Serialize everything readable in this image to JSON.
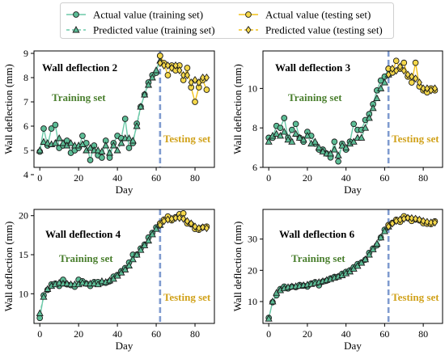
{
  "colors": {
    "training": "#6cc9a8",
    "training_marker": "#5cbd96",
    "testing": "#f2c21a",
    "testing_marker": "#f5d84a",
    "divider": "#7f9bcf",
    "train_text": "#4a7f2e",
    "test_text": "#d1a21b"
  },
  "legend": {
    "entries": [
      {
        "label": "Actual value (training set)",
        "marker": "circle",
        "dashed": false,
        "color": "training"
      },
      {
        "label": "Actual value (testing set)",
        "marker": "circle",
        "dashed": false,
        "color": "testing"
      },
      {
        "label": "Predicted value (training set)",
        "marker": "triangle",
        "dashed": true,
        "color": "training"
      },
      {
        "label": "Predicted value (testing set)",
        "marker": "diamond",
        "dashed": true,
        "color": "testing"
      }
    ]
  },
  "chart_data": [
    {
      "type": "line",
      "title": "Wall deflection 2",
      "xlabel": "Day",
      "ylabel": "Wall deflection (mm)",
      "xlim": [
        -3,
        90
      ],
      "ylim": [
        4.3,
        9.1
      ],
      "xticks": [
        0,
        20,
        40,
        60,
        80
      ],
      "yticks": [
        4,
        5,
        6,
        7,
        8,
        9
      ],
      "split_day": 62,
      "train_label": "Training set",
      "test_label": "Testing set",
      "series": [
        {
          "name": "Actual value (training set)",
          "x": [
            0,
            2,
            4,
            6,
            8,
            10,
            12,
            14,
            16,
            18,
            20,
            22,
            24,
            26,
            28,
            30,
            32,
            34,
            36,
            38,
            40,
            42,
            44,
            46,
            48,
            50,
            52,
            54,
            56,
            58,
            60,
            62
          ],
          "y": [
            4.95,
            5.9,
            5.2,
            5.9,
            6.05,
            5.1,
            5.2,
            5.4,
            4.9,
            5.0,
            5.1,
            5.6,
            5.3,
            4.6,
            5.2,
            4.8,
            4.7,
            5.4,
            4.7,
            5.3,
            5.6,
            5.5,
            6.3,
            5.1,
            5.3,
            6.1,
            6.8,
            7.3,
            7.8,
            8.1,
            8.2,
            8.9
          ]
        },
        {
          "name": "Predicted value (training set)",
          "x": [
            0,
            2,
            4,
            6,
            8,
            10,
            12,
            14,
            16,
            18,
            20,
            22,
            24,
            26,
            28,
            30,
            32,
            34,
            36,
            38,
            40,
            42,
            44,
            46,
            48,
            50,
            52,
            54,
            56,
            58,
            60,
            62
          ],
          "y": [
            5.0,
            5.35,
            5.3,
            5.25,
            5.3,
            5.5,
            5.3,
            5.2,
            5.3,
            5.2,
            5.2,
            5.25,
            5.0,
            5.1,
            5.0,
            5.0,
            4.95,
            5.2,
            4.9,
            5.2,
            5.0,
            5.3,
            5.5,
            5.5,
            5.4,
            6.0,
            6.8,
            7.3,
            7.7,
            8.0,
            8.3,
            8.7
          ]
        },
        {
          "name": "Actual value (testing set)",
          "x": [
            62,
            64,
            66,
            68,
            70,
            72,
            74,
            76,
            78,
            80,
            82,
            84,
            86
          ],
          "y": [
            8.9,
            8.6,
            8.1,
            8.5,
            8.3,
            8.5,
            7.9,
            8.4,
            7.6,
            7.0,
            7.6,
            7.9,
            7.5
          ]
        },
        {
          "name": "Predicted value (testing set)",
          "x": [
            62,
            64,
            66,
            68,
            70,
            72,
            74,
            76,
            78,
            80,
            82,
            84,
            86
          ],
          "y": [
            8.6,
            8.5,
            8.5,
            8.4,
            8.5,
            8.3,
            8.1,
            8.1,
            7.8,
            7.9,
            7.8,
            8.0,
            8.0
          ]
        }
      ]
    },
    {
      "type": "line",
      "title": "Wall deflection 3",
      "xlabel": "Day",
      "ylabel": "Wall deflection (mm)",
      "xlim": [
        -3,
        90
      ],
      "ylim": [
        6.0,
        11.9
      ],
      "xticks": [
        0,
        20,
        40,
        60,
        80
      ],
      "yticks": [
        6,
        8,
        10
      ],
      "split_day": 62,
      "train_label": "Training set",
      "test_label": "Testing set",
      "series": [
        {
          "name": "Actual value (training set)",
          "x": [
            0,
            2,
            4,
            6,
            8,
            10,
            12,
            14,
            16,
            18,
            20,
            22,
            24,
            26,
            28,
            30,
            32,
            34,
            36,
            38,
            40,
            42,
            44,
            46,
            48,
            50,
            52,
            54,
            56,
            58,
            60,
            62
          ],
          "y": [
            7.5,
            7.5,
            8.1,
            8.0,
            8.5,
            7.5,
            7.9,
            8.2,
            7.5,
            7.3,
            7.8,
            7.6,
            7.2,
            6.9,
            6.9,
            6.7,
            6.5,
            7.3,
            6.3,
            7.2,
            6.9,
            7.3,
            8.2,
            7.9,
            7.9,
            8.4,
            8.7,
            9.2,
            9.9,
            10.4,
            10.6,
            11.0
          ]
        },
        {
          "name": "Predicted value (training set)",
          "x": [
            0,
            2,
            4,
            6,
            8,
            10,
            12,
            14,
            16,
            18,
            20,
            22,
            24,
            26,
            28,
            30,
            32,
            34,
            36,
            38,
            40,
            42,
            44,
            46,
            48,
            50,
            52,
            54,
            56,
            58,
            60,
            62
          ],
          "y": [
            7.3,
            7.6,
            7.7,
            7.6,
            7.8,
            7.4,
            7.3,
            7.7,
            7.5,
            7.4,
            7.6,
            7.2,
            7.3,
            7.0,
            6.8,
            6.7,
            6.7,
            6.9,
            6.6,
            7.1,
            7.0,
            7.2,
            7.3,
            7.5,
            7.5,
            8.0,
            8.5,
            9.0,
            9.5,
            10.0,
            10.3,
            10.7
          ]
        },
        {
          "name": "Actual value (testing set)",
          "x": [
            62,
            64,
            66,
            68,
            70,
            72,
            74,
            76,
            78,
            80,
            82,
            84,
            86
          ],
          "y": [
            11.0,
            10.8,
            11.4,
            11.0,
            11.3,
            10.6,
            10.3,
            11.3,
            10.1,
            9.9,
            9.8,
            10.0,
            9.9
          ]
        },
        {
          "name": "Predicted value (testing set)",
          "x": [
            62,
            64,
            66,
            68,
            70,
            72,
            74,
            76,
            78,
            80,
            82,
            84,
            86
          ],
          "y": [
            10.7,
            11.0,
            10.9,
            11.1,
            10.9,
            10.7,
            10.6,
            10.5,
            10.3,
            10.0,
            10.0,
            9.9,
            10.0
          ]
        }
      ]
    },
    {
      "type": "line",
      "title": "Wall deflection 4",
      "xlabel": "Day",
      "ylabel": "Wall deflection (mm)",
      "xlim": [
        -3,
        90
      ],
      "ylim": [
        6.2,
        20.8
      ],
      "xticks": [
        0,
        20,
        40,
        60,
        80
      ],
      "yticks": [
        10,
        15,
        20
      ],
      "split_day": 62,
      "train_label": "Training set",
      "test_label": "Testing set",
      "series": [
        {
          "name": "Actual value (training set)",
          "x": [
            0,
            2,
            4,
            6,
            8,
            10,
            12,
            14,
            16,
            18,
            20,
            22,
            24,
            26,
            28,
            30,
            32,
            34,
            36,
            38,
            40,
            42,
            44,
            46,
            48,
            50,
            52,
            54,
            56,
            58,
            60,
            62
          ],
          "y": [
            6.9,
            9.8,
            10.5,
            11.2,
            11.3,
            11.0,
            11.8,
            11.2,
            11.1,
            10.9,
            11.8,
            11.6,
            11.3,
            11.0,
            11.5,
            11.5,
            11.4,
            11.4,
            11.6,
            12.2,
            12.4,
            12.9,
            13.3,
            14.0,
            15.0,
            15.0,
            15.8,
            16.3,
            17.2,
            17.8,
            18.5,
            19.0
          ]
        },
        {
          "name": "Predicted value (training set)",
          "x": [
            0,
            2,
            4,
            6,
            8,
            10,
            12,
            14,
            16,
            18,
            20,
            22,
            24,
            26,
            28,
            30,
            32,
            34,
            36,
            38,
            40,
            42,
            44,
            46,
            48,
            50,
            52,
            54,
            56,
            58,
            60,
            62
          ],
          "y": [
            7.5,
            9.6,
            10.6,
            11.0,
            11.2,
            11.4,
            11.3,
            11.3,
            11.2,
            11.2,
            11.2,
            11.4,
            11.3,
            11.3,
            11.3,
            11.2,
            11.6,
            11.5,
            11.7,
            11.9,
            12.3,
            12.7,
            13.1,
            13.6,
            14.4,
            15.0,
            15.6,
            16.2,
            16.8,
            17.6,
            18.3,
            18.8
          ]
        },
        {
          "name": "Actual value (testing set)",
          "x": [
            62,
            64,
            66,
            68,
            70,
            72,
            74,
            76,
            78,
            80,
            82,
            84,
            86
          ],
          "y": [
            19.0,
            19.5,
            19.9,
            19.4,
            19.8,
            20.2,
            20.3,
            19.0,
            18.9,
            18.3,
            18.2,
            18.5,
            18.6
          ]
        },
        {
          "name": "Predicted value (testing set)",
          "x": [
            62,
            64,
            66,
            68,
            70,
            72,
            74,
            76,
            78,
            80,
            82,
            84,
            86
          ],
          "y": [
            18.8,
            19.3,
            19.5,
            19.6,
            19.7,
            19.7,
            19.6,
            19.3,
            19.0,
            18.6,
            18.4,
            18.5,
            18.4
          ]
        }
      ]
    },
    {
      "type": "line",
      "title": "Wall deflection 6",
      "xlabel": "Day",
      "ylabel": "Wall deflection (mm)",
      "xlim": [
        -3,
        90
      ],
      "ylim": [
        3.0,
        39.5
      ],
      "xticks": [
        0,
        20,
        40,
        60,
        80
      ],
      "yticks": [
        10,
        20,
        30
      ],
      "split_day": 62,
      "train_label": "Training set",
      "test_label": "Testing set",
      "series": [
        {
          "name": "Actual value (training set)",
          "x": [
            0,
            2,
            4,
            6,
            8,
            10,
            12,
            14,
            16,
            18,
            20,
            22,
            24,
            26,
            28,
            30,
            32,
            34,
            36,
            38,
            40,
            42,
            44,
            46,
            48,
            50,
            52,
            54,
            56,
            58,
            60,
            62
          ],
          "y": [
            4.8,
            9.8,
            12.0,
            14.0,
            14.8,
            14.2,
            14.8,
            14.6,
            15.3,
            15.1,
            14.8,
            15.8,
            16.2,
            15.2,
            16.4,
            16.7,
            17.4,
            17.9,
            18.0,
            18.9,
            19.5,
            20.0,
            21.0,
            22.0,
            22.5,
            23.4,
            25.6,
            27.0,
            28.0,
            30.5,
            33.0,
            34.5
          ]
        },
        {
          "name": "Predicted value (training set)",
          "x": [
            0,
            2,
            4,
            6,
            8,
            10,
            12,
            14,
            16,
            18,
            20,
            22,
            24,
            26,
            28,
            30,
            32,
            34,
            36,
            38,
            40,
            42,
            44,
            46,
            48,
            50,
            52,
            54,
            56,
            58,
            60,
            62
          ],
          "y": [
            4.5,
            10.0,
            12.8,
            13.6,
            14.2,
            14.6,
            14.8,
            14.9,
            15.0,
            15.2,
            15.4,
            15.6,
            15.9,
            16.2,
            16.5,
            16.9,
            17.2,
            17.6,
            18.0,
            18.4,
            19.0,
            19.6,
            20.5,
            21.4,
            22.4,
            23.5,
            25.0,
            26.7,
            28.5,
            30.5,
            32.5,
            34.0
          ]
        },
        {
          "name": "Actual value (testing set)",
          "x": [
            62,
            64,
            66,
            68,
            70,
            72,
            74,
            76,
            78,
            80,
            82,
            84,
            86
          ],
          "y": [
            34.5,
            35.2,
            36.2,
            35.5,
            37.3,
            36.7,
            35.8,
            36.3,
            36.0,
            35.1,
            34.9,
            34.8,
            35.7
          ]
        },
        {
          "name": "Predicted value (testing set)",
          "x": [
            62,
            64,
            66,
            68,
            70,
            72,
            74,
            76,
            78,
            80,
            82,
            84,
            86
          ],
          "y": [
            34.0,
            35.0,
            35.8,
            36.2,
            36.5,
            36.8,
            36.7,
            36.5,
            36.2,
            35.8,
            35.5,
            35.3,
            35.3
          ]
        }
      ]
    }
  ]
}
